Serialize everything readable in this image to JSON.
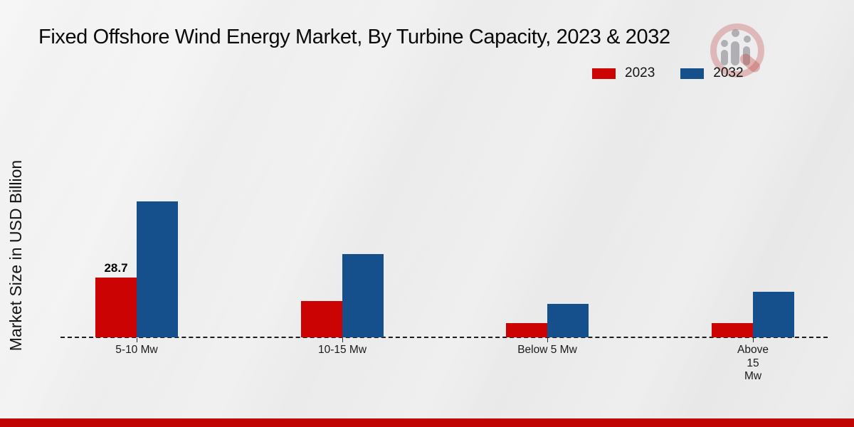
{
  "title": "Fixed Offshore Wind Energy Market, By Turbine Capacity, 2023 & 2032",
  "y_axis_label": "Market Size in USD Billion",
  "legend": [
    {
      "label": "2023",
      "color": "#cb0303"
    },
    {
      "label": "2032",
      "color": "#154f8c"
    }
  ],
  "watermark": {
    "name": "brand-logo-watermark"
  },
  "footer": {
    "bar_color": "#c00404"
  },
  "chart_data": {
    "type": "bar",
    "title": "Fixed Offshore Wind Energy Market, By Turbine Capacity, 2023 & 2032",
    "ylabel": "Market Size in USD Billion",
    "xlabel": "",
    "grid": false,
    "legend_position": "top-right",
    "baseline_style": "dashed",
    "categories": [
      "5-10 Mw",
      "10-15 Mw",
      "Below 5 Mw",
      "Above 15 Mw"
    ],
    "tick_labels": [
      "5-10 Mw",
      "10-15 Mw",
      "Below 5 Mw",
      "Above\n15\nMw"
    ],
    "series": [
      {
        "name": "2023",
        "color": "#cb0303",
        "values": [
          28.7,
          17.3,
          6.7,
          6.7
        ],
        "labels": [
          "28.7",
          null,
          null,
          null
        ]
      },
      {
        "name": "2032",
        "color": "#154f8c",
        "values": [
          65.4,
          40.1,
          15.9,
          22.0
        ],
        "labels": [
          null,
          null,
          null,
          null
        ]
      }
    ],
    "ylim": [
      0,
      70
    ]
  }
}
